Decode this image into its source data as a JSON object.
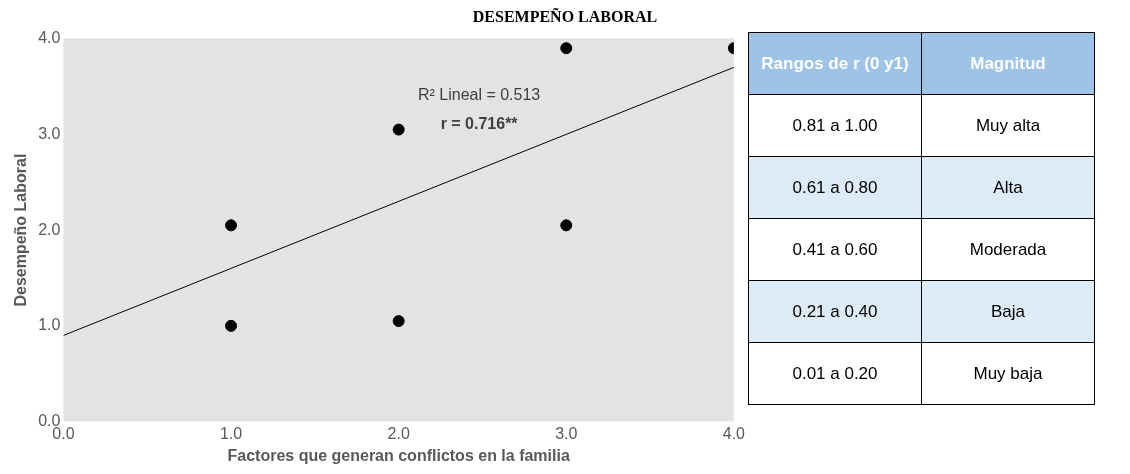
{
  "chart_data": [
    {
      "type": "scatter",
      "title": "DESEMPEÑO LABORAL",
      "xlabel": "Factores que generan conflictos en la familia",
      "ylabel": "Desempeño Laboral",
      "xlim": [
        0,
        4
      ],
      "ylim": [
        0,
        4
      ],
      "xticks": [
        {
          "value": 0,
          "label": "0.0"
        },
        {
          "value": 1,
          "label": "1.0"
        },
        {
          "value": 2,
          "label": "2.0"
        },
        {
          "value": 3,
          "label": "3.0"
        },
        {
          "value": 4,
          "label": "4.0"
        }
      ],
      "yticks": [
        {
          "value": 0,
          "label": "0.0"
        },
        {
          "value": 1,
          "label": "1.0"
        },
        {
          "value": 2,
          "label": "2.0"
        },
        {
          "value": 3,
          "label": "3.0"
        },
        {
          "value": 4,
          "label": "4.0"
        }
      ],
      "grid": false,
      "legend": false,
      "marker": "circle",
      "series": [
        {
          "type": "scatter",
          "color": "#000000",
          "x": [
            1,
            1,
            2,
            2,
            3,
            3,
            4
          ],
          "values": [
            1.0,
            2.05,
            1.05,
            3.05,
            2.05,
            3.9,
            3.9
          ]
        },
        {
          "type": "line",
          "color": "#000000",
          "x": [
            0,
            4
          ],
          "values": [
            0.9,
            3.7
          ],
          "line_style": "solid",
          "marker": "none"
        }
      ],
      "annotations": [
        "R² Lineal = 0.513",
        "r = 0.716**"
      ]
    },
    {
      "type": "other",
      "annotations": [
        "Rangos de r (0 y1)",
        "Magnitud",
        "0.81  a 1.00",
        "Muy alta",
        "0.61 a 0.80",
        "Alta",
        "0.41 a 0.60",
        "Moderada",
        "0.21 a 0.40",
        "Baja",
        "0.01 a 0.20",
        "Muy baja"
      ]
    }
  ]
}
